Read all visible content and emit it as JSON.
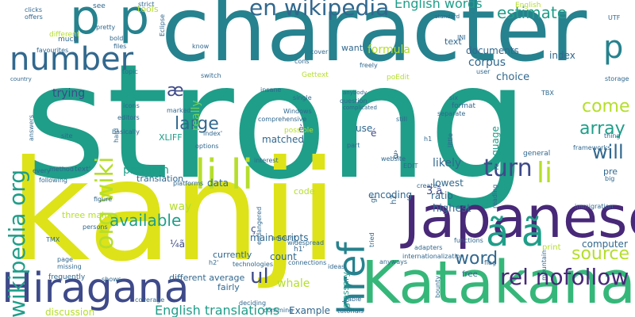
{
  "palette": {
    "dark_purple": "#482878",
    "indigo": "#3e4a89",
    "slate_blue": "#31688e",
    "teal": "#26828e",
    "green_teal": "#1f9e89",
    "green": "#35b779",
    "light_green": "#6ece58",
    "yellow_green": "#b5de2b",
    "yellow": "#dde318"
  },
  "words": [
    {
      "text": "strong",
      "color": "green_teal"
    },
    {
      "text": "kanji",
      "color": "yellow"
    },
    {
      "text": "character",
      "color": "teal"
    },
    {
      "text": "Japanese",
      "color": "dark_purple"
    },
    {
      "text": "Katakana",
      "color": "green"
    },
    {
      "text": "Hiragana",
      "color": "indigo"
    },
    {
      "text": "p",
      "color": "teal"
    },
    {
      "text": "p",
      "color": "teal"
    },
    {
      "text": "number",
      "color": "slate_blue"
    },
    {
      "text": "en wikipedia",
      "color": "slate_blue"
    },
    {
      "text": "li li",
      "color": "yellow_green"
    },
    {
      "text": "href",
      "color": "teal"
    },
    {
      "text": "wikipedia org",
      "color": "green_teal"
    },
    {
      "text": "org wiki",
      "color": "yellow_green"
    },
    {
      "text": "ã ã",
      "color": "green_teal"
    },
    {
      "text": "rel nofollow",
      "color": "dark_purple"
    },
    {
      "text": "English words",
      "color": "green_teal"
    },
    {
      "text": "estimate",
      "color": "green_teal"
    },
    {
      "text": "large",
      "color": "slate_blue"
    },
    {
      "text": "array",
      "color": "green_teal"
    },
    {
      "text": "come",
      "color": "yellow_green"
    },
    {
      "text": "will",
      "color": "slate_blue"
    },
    {
      "text": "turn",
      "color": "indigo"
    },
    {
      "text": "li",
      "color": "yellow_green"
    },
    {
      "text": "word",
      "color": "slate_blue"
    },
    {
      "text": "source",
      "color": "yellow_green"
    },
    {
      "text": "ul",
      "color": "indigo"
    },
    {
      "text": "p",
      "color": "teal"
    },
    {
      "text": "available",
      "color": "green_teal"
    },
    {
      "text": "æ",
      "color": "indigo"
    },
    {
      "text": "English translations",
      "color": "green_teal"
    },
    {
      "text": "formula",
      "color": "yellow_green"
    },
    {
      "text": "documents",
      "color": "slate_blue"
    },
    {
      "text": "corpus",
      "color": "slate_blue"
    },
    {
      "text": "choice",
      "color": "slate_blue"
    },
    {
      "text": "index",
      "color": "slate_blue"
    },
    {
      "text": "trying",
      "color": "indigo"
    },
    {
      "text": "really",
      "color": "light_green"
    },
    {
      "text": "matched",
      "color": "slate_blue"
    },
    {
      "text": "encoding",
      "color": "slate_blue"
    },
    {
      "text": "ratio",
      "color": "slate_blue"
    },
    {
      "text": "likely",
      "color": "slate_blue"
    },
    {
      "text": "lowest",
      "color": "slate_blue"
    },
    {
      "text": "highest",
      "color": "slate_blue"
    },
    {
      "text": "language",
      "color": "green_teal"
    },
    {
      "text": "problem",
      "color": "green_teal"
    },
    {
      "text": "translation",
      "color": "slate_blue"
    },
    {
      "text": "data",
      "color": "slate_blue"
    },
    {
      "text": "way",
      "color": "yellow_green"
    },
    {
      "text": "three main",
      "color": "yellow_green"
    },
    {
      "text": "main scripts",
      "color": "slate_blue"
    },
    {
      "text": "count",
      "color": "slate_blue"
    },
    {
      "text": "different average",
      "color": "slate_blue"
    },
    {
      "text": "currently",
      "color": "slate_blue"
    },
    {
      "text": "fairly",
      "color": "slate_blue"
    },
    {
      "text": "whale",
      "color": "yellow_green"
    },
    {
      "text": "Example",
      "color": "slate_blue"
    },
    {
      "text": "discussion",
      "color": "yellow_green"
    },
    {
      "text": "glossary",
      "color": "green_teal"
    },
    {
      "text": "code",
      "color": "yellow_green"
    },
    {
      "text": "computer",
      "color": "slate_blue"
    },
    {
      "text": "free",
      "color": "slate_blue"
    },
    {
      "text": "use",
      "color": "slate_blue"
    },
    {
      "text": "text",
      "color": "slate_blue"
    },
    {
      "text": "want",
      "color": "slate_blue"
    },
    {
      "text": "tools",
      "color": "yellow_green"
    },
    {
      "text": "XLIFF",
      "color": "green_teal"
    },
    {
      "text": "poEdit",
      "color": "yellow_green"
    },
    {
      "text": "Gettext",
      "color": "yellow_green"
    },
    {
      "text": "pre",
      "color": "slate_blue"
    },
    {
      "text": "print",
      "color": "yellow_green"
    },
    {
      "text": "3 ã",
      "color": "indigo"
    },
    {
      "text": "ç",
      "color": "indigo"
    },
    {
      "text": "¼ã",
      "color": "indigo"
    },
    {
      "text": "è",
      "color": "indigo"
    },
    {
      "text": "é",
      "color": "indigo"
    },
    {
      "text": "much",
      "color": "slate_blue"
    },
    {
      "text": "different",
      "color": "yellow_green"
    },
    {
      "text": "files",
      "color": "slate_blue"
    },
    {
      "text": "clicks",
      "color": "slate_blue"
    },
    {
      "text": "offers",
      "color": "slate_blue"
    },
    {
      "text": "favourites",
      "color": "slate_blue"
    },
    {
      "text": "see",
      "color": "slate_blue"
    },
    {
      "text": "pretty",
      "color": "slate_blue"
    },
    {
      "text": "bold",
      "color": "slate_blue"
    },
    {
      "text": "strict",
      "color": "slate_blue"
    },
    {
      "text": "Eclipse",
      "color": "slate_blue"
    },
    {
      "text": "English",
      "color": "yellow_green"
    },
    {
      "text": "standard",
      "color": "slate_blue"
    },
    {
      "text": "INI",
      "color": "slate_blue"
    },
    {
      "text": "know",
      "color": "slate_blue"
    },
    {
      "text": "topic",
      "color": "slate_blue"
    },
    {
      "text": "switch",
      "color": "slate_blue"
    },
    {
      "text": "insane",
      "color": "slate_blue"
    },
    {
      "text": "single",
      "color": "slate_blue"
    },
    {
      "text": "question",
      "color": "slate_blue"
    },
    {
      "text": "anybody",
      "color": "slate_blue"
    },
    {
      "text": "complicated",
      "color": "slate_blue"
    },
    {
      "text": "Windows",
      "color": "slate_blue"
    },
    {
      "text": "comprehensive",
      "color": "slate_blue"
    },
    {
      "text": "possible",
      "color": "yellow_green"
    },
    {
      "text": "part",
      "color": "slate_blue"
    },
    {
      "text": "still",
      "color": "slate_blue"
    },
    {
      "text": "separate",
      "color": "slate_blue"
    },
    {
      "text": "format",
      "color": "slate_blue"
    },
    {
      "text": "six",
      "color": "slate_blue"
    },
    {
      "text": "hard",
      "color": "slate_blue"
    },
    {
      "text": "icons",
      "color": "slate_blue"
    },
    {
      "text": "editors",
      "color": "slate_blue"
    },
    {
      "text": "marked",
      "color": "slate_blue"
    },
    {
      "text": "options",
      "color": "slate_blue"
    },
    {
      "text": "platforms",
      "color": "slate_blue"
    },
    {
      "text": "site",
      "color": "slate_blue"
    },
    {
      "text": "method",
      "color": "slate_blue"
    },
    {
      "text": "text'",
      "color": "slate_blue"
    },
    {
      "text": "every",
      "color": "slate_blue"
    },
    {
      "text": "following",
      "color": "slate_blue"
    },
    {
      "text": "country",
      "color": "slate_blue"
    },
    {
      "text": "answers",
      "color": "slate_blue"
    },
    {
      "text": "basically",
      "color": "slate_blue"
    },
    {
      "text": "interest",
      "color": "slate_blue"
    },
    {
      "text": "website",
      "color": "slate_blue"
    },
    {
      "text": "EDIT",
      "color": "slate_blue"
    },
    {
      "text": "h1",
      "color": "slate_blue"
    },
    {
      "text": "h2",
      "color": "slate_blue"
    },
    {
      "text": "h1'",
      "color": "slate_blue"
    },
    {
      "text": "h2'",
      "color": "slate_blue"
    },
    {
      "text": "index'",
      "color": "slate_blue"
    },
    {
      "text": "general",
      "color": "slate_blue"
    },
    {
      "text": "thing",
      "color": "slate_blue"
    },
    {
      "text": "big",
      "color": "slate_blue"
    },
    {
      "text": "storage",
      "color": "slate_blue"
    },
    {
      "text": "TBX",
      "color": "slate_blue"
    },
    {
      "text": "TMX",
      "color": "slate_blue"
    },
    {
      "text": "flag",
      "color": "slate_blue"
    },
    {
      "text": "functions",
      "color": "slate_blue"
    },
    {
      "text": "adapters",
      "color": "slate_blue"
    },
    {
      "text": "internationalization",
      "color": "slate_blue"
    },
    {
      "text": "technologies",
      "color": "slate_blue"
    },
    {
      "text": "coverage",
      "color": "slate_blue"
    },
    {
      "text": "frequently",
      "color": "slate_blue"
    },
    {
      "text": "shows",
      "color": "slate_blue"
    },
    {
      "text": "page",
      "color": "slate_blue"
    },
    {
      "text": "missing",
      "color": "slate_blue"
    },
    {
      "text": "deciding",
      "color": "slate_blue"
    },
    {
      "text": "comming",
      "color": "slate_blue"
    },
    {
      "text": "ideas",
      "color": "slate_blue"
    },
    {
      "text": "able",
      "color": "slate_blue"
    },
    {
      "text": "tutorials",
      "color": "slate_blue"
    },
    {
      "text": "amount",
      "color": "slate_blue"
    },
    {
      "text": "widespread",
      "color": "slate_blue"
    },
    {
      "text": "connections",
      "color": "slate_blue"
    },
    {
      "text": "endangered",
      "color": "slate_blue"
    },
    {
      "text": "persons",
      "color": "slate_blue"
    },
    {
      "text": "figure",
      "color": "slate_blue"
    },
    {
      "text": "create",
      "color": "slate_blue"
    },
    {
      "text": "tried",
      "color": "slate_blue"
    },
    {
      "text": "anyways",
      "color": "slate_blue"
    },
    {
      "text": "bounty",
      "color": "slate_blue"
    },
    {
      "text": "mountain",
      "color": "slate_blue"
    },
    {
      "text": "reading",
      "color": "slate_blue"
    },
    {
      "text": "immigration",
      "color": "slate_blue"
    },
    {
      "text": "frameworks",
      "color": "slate_blue"
    },
    {
      "text": "cover",
      "color": "slate_blue"
    },
    {
      "text": "cons",
      "color": "slate_blue"
    },
    {
      "text": "freely",
      "color": "slate_blue"
    },
    {
      "text": "user",
      "color": "slate_blue"
    },
    {
      "text": "little",
      "color": "slate_blue"
    },
    {
      "text": "UTF",
      "color": "slate_blue"
    },
    {
      "text": "gt",
      "color": "slate_blue"
    },
    {
      "text": "â",
      "color": "slate_blue"
    }
  ]
}
